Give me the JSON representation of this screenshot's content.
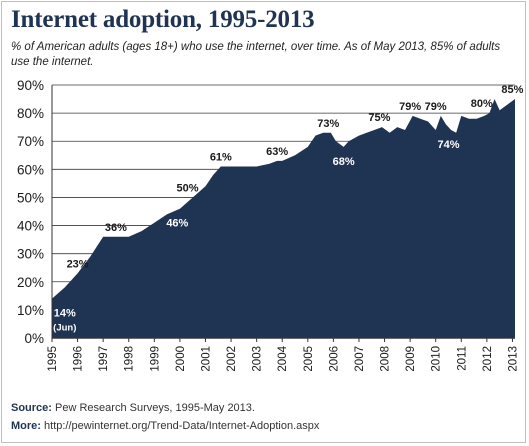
{
  "header": {
    "title": "Internet adoption, 1995-2013",
    "subtitle": "% of American adults (ages 18+) who use the internet, over time. As of May 2013, 85% of adults use the internet."
  },
  "footer": {
    "source_label": "Source:",
    "source_text": "Pew Research Surveys, 1995-May 2013.",
    "more_label": "More:",
    "more_text": "http://pewinternet.org/Trend-Data/Internet-Adoption.aspx"
  },
  "colors": {
    "area": "#1f3352",
    "title": "#1f3352",
    "grid": "#333333"
  },
  "chart_data": {
    "type": "area",
    "title": "Internet adoption, 1995-2013",
    "xlabel": "",
    "ylabel": "",
    "xlim": [
      1995,
      2013.1
    ],
    "ylim": [
      0,
      90
    ],
    "grid": true,
    "y_ticks": [
      "0%",
      "10%",
      "20%",
      "30%",
      "40%",
      "50%",
      "60%",
      "70%",
      "80%",
      "90%"
    ],
    "x_ticks": [
      "1995",
      "1996",
      "1997",
      "1998",
      "1999",
      "2000",
      "2001",
      "2002",
      "2003",
      "2004",
      "2005",
      "2006",
      "2007",
      "2008",
      "2009",
      "2010",
      "2011",
      "2012",
      "2013"
    ],
    "series": [
      {
        "x": [
          1995.0,
          1995.5,
          1996.0,
          1996.5,
          1997.0,
          1997.5,
          1998.0,
          1998.5,
          1999.0,
          1999.5,
          2000.0,
          2000.5,
          2001.0,
          2001.3,
          2001.6,
          2002.0,
          2002.5,
          2003.0,
          2003.5,
          2003.8,
          2004.0,
          2004.5,
          2005.0,
          2005.3,
          2005.6,
          2005.9,
          2006.1,
          2006.4,
          2006.6,
          2007.0,
          2007.3,
          2007.6,
          2007.9,
          2008.2,
          2008.5,
          2008.8,
          2009.1,
          2009.4,
          2009.7,
          2010.0,
          2010.2,
          2010.4,
          2010.6,
          2010.8,
          2011.0,
          2011.3,
          2011.6,
          2011.9,
          2012.1,
          2012.3,
          2012.5,
          2012.8,
          2013.1
        ],
        "values": [
          14,
          18,
          23,
          29,
          36,
          36,
          36,
          38,
          41,
          44,
          46,
          50,
          54,
          58,
          61,
          61,
          61,
          61,
          62,
          63,
          63,
          65,
          68,
          72,
          73,
          73,
          70,
          68,
          70,
          72,
          73,
          74,
          75,
          73,
          75,
          74,
          79,
          78,
          77,
          74,
          79,
          76,
          74,
          73,
          79,
          78,
          78,
          79,
          80,
          85,
          81,
          83,
          85
        ]
      }
    ],
    "annotations": [
      {
        "x": 1995.5,
        "y": 14,
        "label": "14%",
        "sub": "(Jun)",
        "color": "#ffffff"
      },
      {
        "x": 1996.0,
        "y": 23,
        "label": "23%",
        "color": "#1a1a1a"
      },
      {
        "x": 1997.5,
        "y": 36,
        "label": "36%",
        "color": "#1a1a1a"
      },
      {
        "x": 1999.9,
        "y": 46,
        "label": "46%",
        "color": "#ffffff"
      },
      {
        "x": 2000.3,
        "y": 50,
        "label": "50%",
        "color": "#1a1a1a"
      },
      {
        "x": 2001.6,
        "y": 61,
        "label": "61%",
        "color": "#1a1a1a"
      },
      {
        "x": 2003.8,
        "y": 63,
        "label": "63%",
        "color": "#1a1a1a"
      },
      {
        "x": 2005.8,
        "y": 73,
        "label": "73%",
        "color": "#1a1a1a"
      },
      {
        "x": 2006.4,
        "y": 68,
        "label": "68%",
        "color": "#ffffff"
      },
      {
        "x": 2007.8,
        "y": 75,
        "label": "75%",
        "color": "#1a1a1a"
      },
      {
        "x": 2009.0,
        "y": 79,
        "label": "79%",
        "color": "#1a1a1a"
      },
      {
        "x": 2010.0,
        "y": 79,
        "label": "79%",
        "color": "#1a1a1a"
      },
      {
        "x": 2010.5,
        "y": 74,
        "label": "74%",
        "color": "#ffffff"
      },
      {
        "x": 2011.8,
        "y": 80,
        "label": "80%",
        "color": "#1a1a1a"
      },
      {
        "x": 2013.0,
        "y": 85,
        "label": "85%",
        "color": "#1a1a1a"
      }
    ]
  }
}
